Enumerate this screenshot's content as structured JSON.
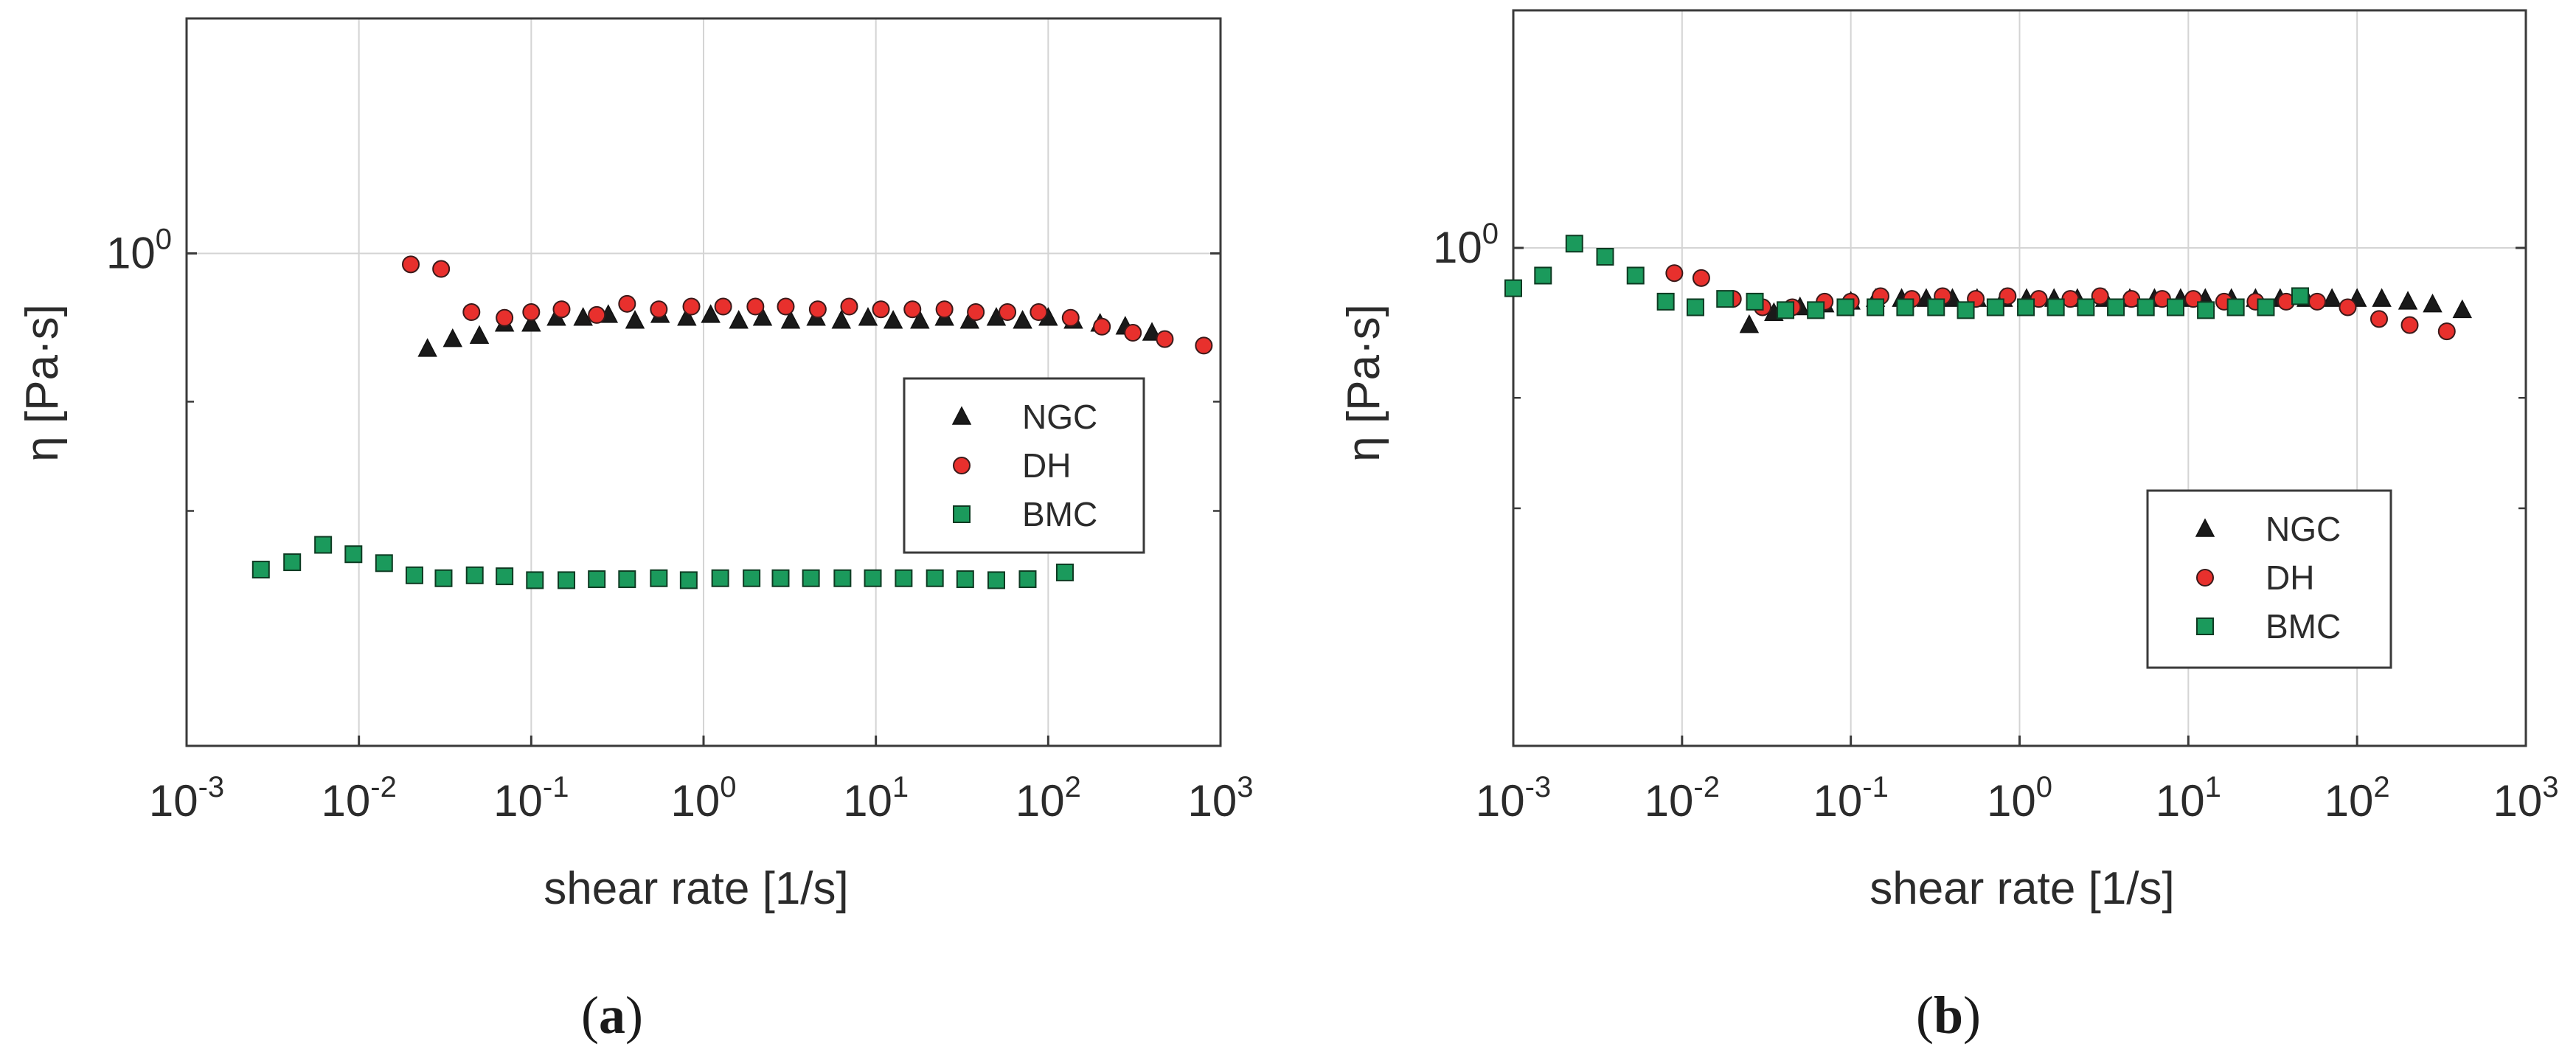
{
  "chart_data": [
    {
      "id": "a",
      "type": "scatter",
      "caption": "(a)",
      "caption_prefix": "(",
      "caption_letter": "a",
      "caption_suffix": ")",
      "xlabel": "shear rate [1/s]",
      "ylabel": "η [Pa·s]",
      "xscale": "log",
      "yscale": "log",
      "xlim": [
        0.001,
        1000
      ],
      "ylim": [
        0.1,
        3.0
      ],
      "grid": true,
      "legend_position": "right-middle",
      "x_ticks": [
        {
          "value": 0.001,
          "base": "10",
          "exp": "-3"
        },
        {
          "value": 0.01,
          "base": "10",
          "exp": "-2"
        },
        {
          "value": 0.1,
          "base": "10",
          "exp": "-1"
        },
        {
          "value": 1,
          "base": "10",
          "exp": "0"
        },
        {
          "value": 10,
          "base": "10",
          "exp": "1"
        },
        {
          "value": 100,
          "base": "10",
          "exp": "2"
        },
        {
          "value": 1000,
          "base": "10",
          "exp": "3"
        }
      ],
      "y_ticks": [
        {
          "value": 1,
          "base": "10",
          "exp": "0"
        }
      ],
      "y_minor_ticks": [
        0.3,
        0.5
      ],
      "series": [
        {
          "name": "NGC",
          "marker": "triangle",
          "color": "#1a1a1a",
          "x": [
            0.025,
            0.035,
            0.05,
            0.07,
            0.1,
            0.14,
            0.2,
            0.28,
            0.4,
            0.56,
            0.8,
            1.1,
            1.6,
            2.2,
            3.2,
            4.5,
            6.3,
            9,
            12.6,
            18,
            25,
            35,
            50,
            71,
            100,
            140,
            200,
            280,
            400
          ],
          "y": [
            0.64,
            0.67,
            0.68,
            0.72,
            0.72,
            0.74,
            0.74,
            0.75,
            0.73,
            0.75,
            0.74,
            0.75,
            0.73,
            0.74,
            0.73,
            0.74,
            0.73,
            0.74,
            0.73,
            0.73,
            0.74,
            0.73,
            0.74,
            0.73,
            0.74,
            0.73,
            0.72,
            0.71,
            0.69
          ]
        },
        {
          "name": "DH",
          "marker": "circle",
          "color": "#e8302d",
          "x": [
            0.02,
            0.03,
            0.045,
            0.07,
            0.1,
            0.15,
            0.24,
            0.36,
            0.55,
            0.85,
            1.3,
            2,
            3,
            4.6,
            7,
            10.7,
            16.3,
            25,
            38,
            58,
            88,
            135,
            205,
            310,
            475,
            800
          ],
          "y": [
            0.95,
            0.93,
            0.76,
            0.74,
            0.76,
            0.77,
            0.75,
            0.79,
            0.77,
            0.78,
            0.78,
            0.78,
            0.78,
            0.77,
            0.78,
            0.77,
            0.77,
            0.77,
            0.76,
            0.76,
            0.76,
            0.74,
            0.71,
            0.69,
            0.67,
            0.65
          ]
        },
        {
          "name": "BMC",
          "marker": "square",
          "color": "#1b9a5c",
          "x": [
            0.0027,
            0.0041,
            0.0062,
            0.0093,
            0.014,
            0.021,
            0.031,
            0.047,
            0.07,
            0.105,
            0.16,
            0.24,
            0.36,
            0.55,
            0.82,
            1.25,
            1.9,
            2.8,
            4.2,
            6.4,
            9.6,
            14.5,
            22,
            33,
            50,
            76,
            125
          ],
          "y": [
            0.228,
            0.236,
            0.256,
            0.245,
            0.235,
            0.222,
            0.219,
            0.222,
            0.221,
            0.217,
            0.217,
            0.218,
            0.218,
            0.219,
            0.217,
            0.219,
            0.219,
            0.219,
            0.219,
            0.219,
            0.219,
            0.219,
            0.219,
            0.218,
            0.217,
            0.218,
            0.225
          ]
        }
      ]
    },
    {
      "id": "b",
      "type": "scatter",
      "caption": "(b)",
      "caption_prefix": "(",
      "caption_letter": "b",
      "caption_suffix": ")",
      "xlabel": "shear rate [1/s]",
      "ylabel": "η [Pa·s]",
      "xscale": "log",
      "yscale": "log",
      "xlim": [
        0.001,
        1000
      ],
      "ylim": [
        0.1,
        3.0
      ],
      "grid": true,
      "legend_position": "bottom-right",
      "x_ticks": [
        {
          "value": 0.001,
          "base": "10",
          "exp": "-3"
        },
        {
          "value": 0.01,
          "base": "10",
          "exp": "-2"
        },
        {
          "value": 0.1,
          "base": "10",
          "exp": "-1"
        },
        {
          "value": 1,
          "base": "10",
          "exp": "0"
        },
        {
          "value": 10,
          "base": "10",
          "exp": "1"
        },
        {
          "value": 100,
          "base": "10",
          "exp": "2"
        },
        {
          "value": 1000,
          "base": "10",
          "exp": "3"
        }
      ],
      "y_ticks": [
        {
          "value": 1,
          "base": "10",
          "exp": "0"
        }
      ],
      "y_minor_ticks": [
        0.3,
        0.5
      ],
      "series": [
        {
          "name": "NGC",
          "marker": "triangle",
          "color": "#1a1a1a",
          "x": [
            0.025,
            0.035,
            0.05,
            0.07,
            0.1,
            0.14,
            0.2,
            0.28,
            0.4,
            0.56,
            0.8,
            1.1,
            1.6,
            2.2,
            3.2,
            4.5,
            6.3,
            9,
            12.6,
            18,
            25,
            35,
            50,
            71,
            100,
            140,
            200,
            280,
            420
          ],
          "y": [
            0.7,
            0.74,
            0.76,
            0.77,
            0.78,
            0.79,
            0.79,
            0.79,
            0.79,
            0.79,
            0.79,
            0.79,
            0.79,
            0.79,
            0.79,
            0.79,
            0.79,
            0.79,
            0.79,
            0.79,
            0.79,
            0.79,
            0.79,
            0.79,
            0.79,
            0.79,
            0.78,
            0.77,
            0.75
          ]
        },
        {
          "name": "DH",
          "marker": "circle",
          "color": "#e8302d",
          "x": [
            0.009,
            0.013,
            0.02,
            0.03,
            0.045,
            0.07,
            0.1,
            0.15,
            0.23,
            0.35,
            0.55,
            0.85,
            1.3,
            2,
            3,
            4.6,
            7,
            10.7,
            16.3,
            25,
            38,
            58,
            88,
            135,
            205,
            340
          ],
          "y": [
            0.89,
            0.87,
            0.79,
            0.76,
            0.76,
            0.78,
            0.78,
            0.8,
            0.79,
            0.8,
            0.79,
            0.8,
            0.79,
            0.79,
            0.8,
            0.79,
            0.79,
            0.79,
            0.78,
            0.78,
            0.78,
            0.78,
            0.76,
            0.72,
            0.7,
            0.68
          ]
        },
        {
          "name": "BMC",
          "marker": "square",
          "color": "#1b9a5c",
          "x": [
            0.001,
            0.0015,
            0.0023,
            0.0035,
            0.0053,
            0.008,
            0.012,
            0.018,
            0.027,
            0.041,
            0.062,
            0.093,
            0.14,
            0.21,
            0.32,
            0.48,
            0.72,
            1.09,
            1.64,
            2.47,
            3.72,
            5.6,
            8.4,
            12.7,
            19.1,
            28.8,
            46
          ],
          "y": [
            0.83,
            0.88,
            1.02,
            0.96,
            0.88,
            0.78,
            0.76,
            0.79,
            0.78,
            0.75,
            0.75,
            0.76,
            0.76,
            0.76,
            0.76,
            0.75,
            0.76,
            0.76,
            0.76,
            0.76,
            0.76,
            0.76,
            0.76,
            0.75,
            0.76,
            0.76,
            0.8
          ]
        }
      ]
    }
  ]
}
